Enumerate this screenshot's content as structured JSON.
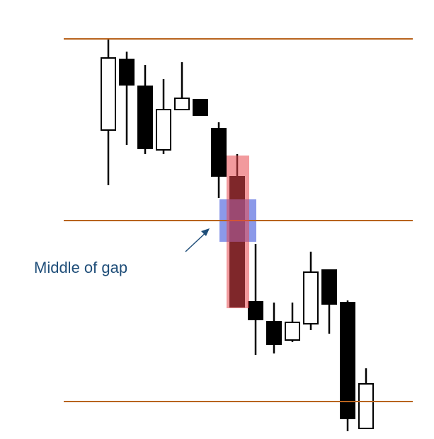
{
  "chart_data": {
    "type": "candlestick",
    "categories": [
      null,
      null,
      null,
      null,
      null,
      null,
      null,
      null,
      null,
      null,
      null,
      null,
      null,
      null,
      null
    ],
    "open": [
      43.7,
      53.7,
      49.9,
      40.9,
      46.6,
      48.0,
      43.9,
      37.1,
      19.4,
      16.6,
      14.0,
      16.3,
      23.9,
      19.3,
      1.5
    ],
    "high": [
      56.6,
      54.8,
      52.9,
      50.9,
      53.3,
      48.0,
      44.8,
      40.3,
      27.6,
      19.3,
      19.3,
      26.5,
      23.9,
      19.6,
      10.0
    ],
    "low": [
      35.9,
      41.6,
      40.3,
      40.3,
      46.6,
      45.8,
      34.1,
      18.7,
      11.9,
      12.1,
      13.7,
      15.4,
      14.9,
      1.1,
      1.4
    ],
    "close": [
      53.9,
      50.1,
      41.1,
      46.6,
      48.2,
      45.8,
      37.2,
      18.7,
      16.9,
      13.4,
      16.5,
      23.6,
      19.1,
      2.9,
      7.8
    ],
    "up_color": "#ffffff",
    "down_color": "#000000",
    "ylim": [
      0,
      62.1
    ],
    "levels": [
      56.6,
      30.9,
      5.3
    ],
    "level_color": "#b8641e",
    "annotation": "Middle of gap"
  }
}
